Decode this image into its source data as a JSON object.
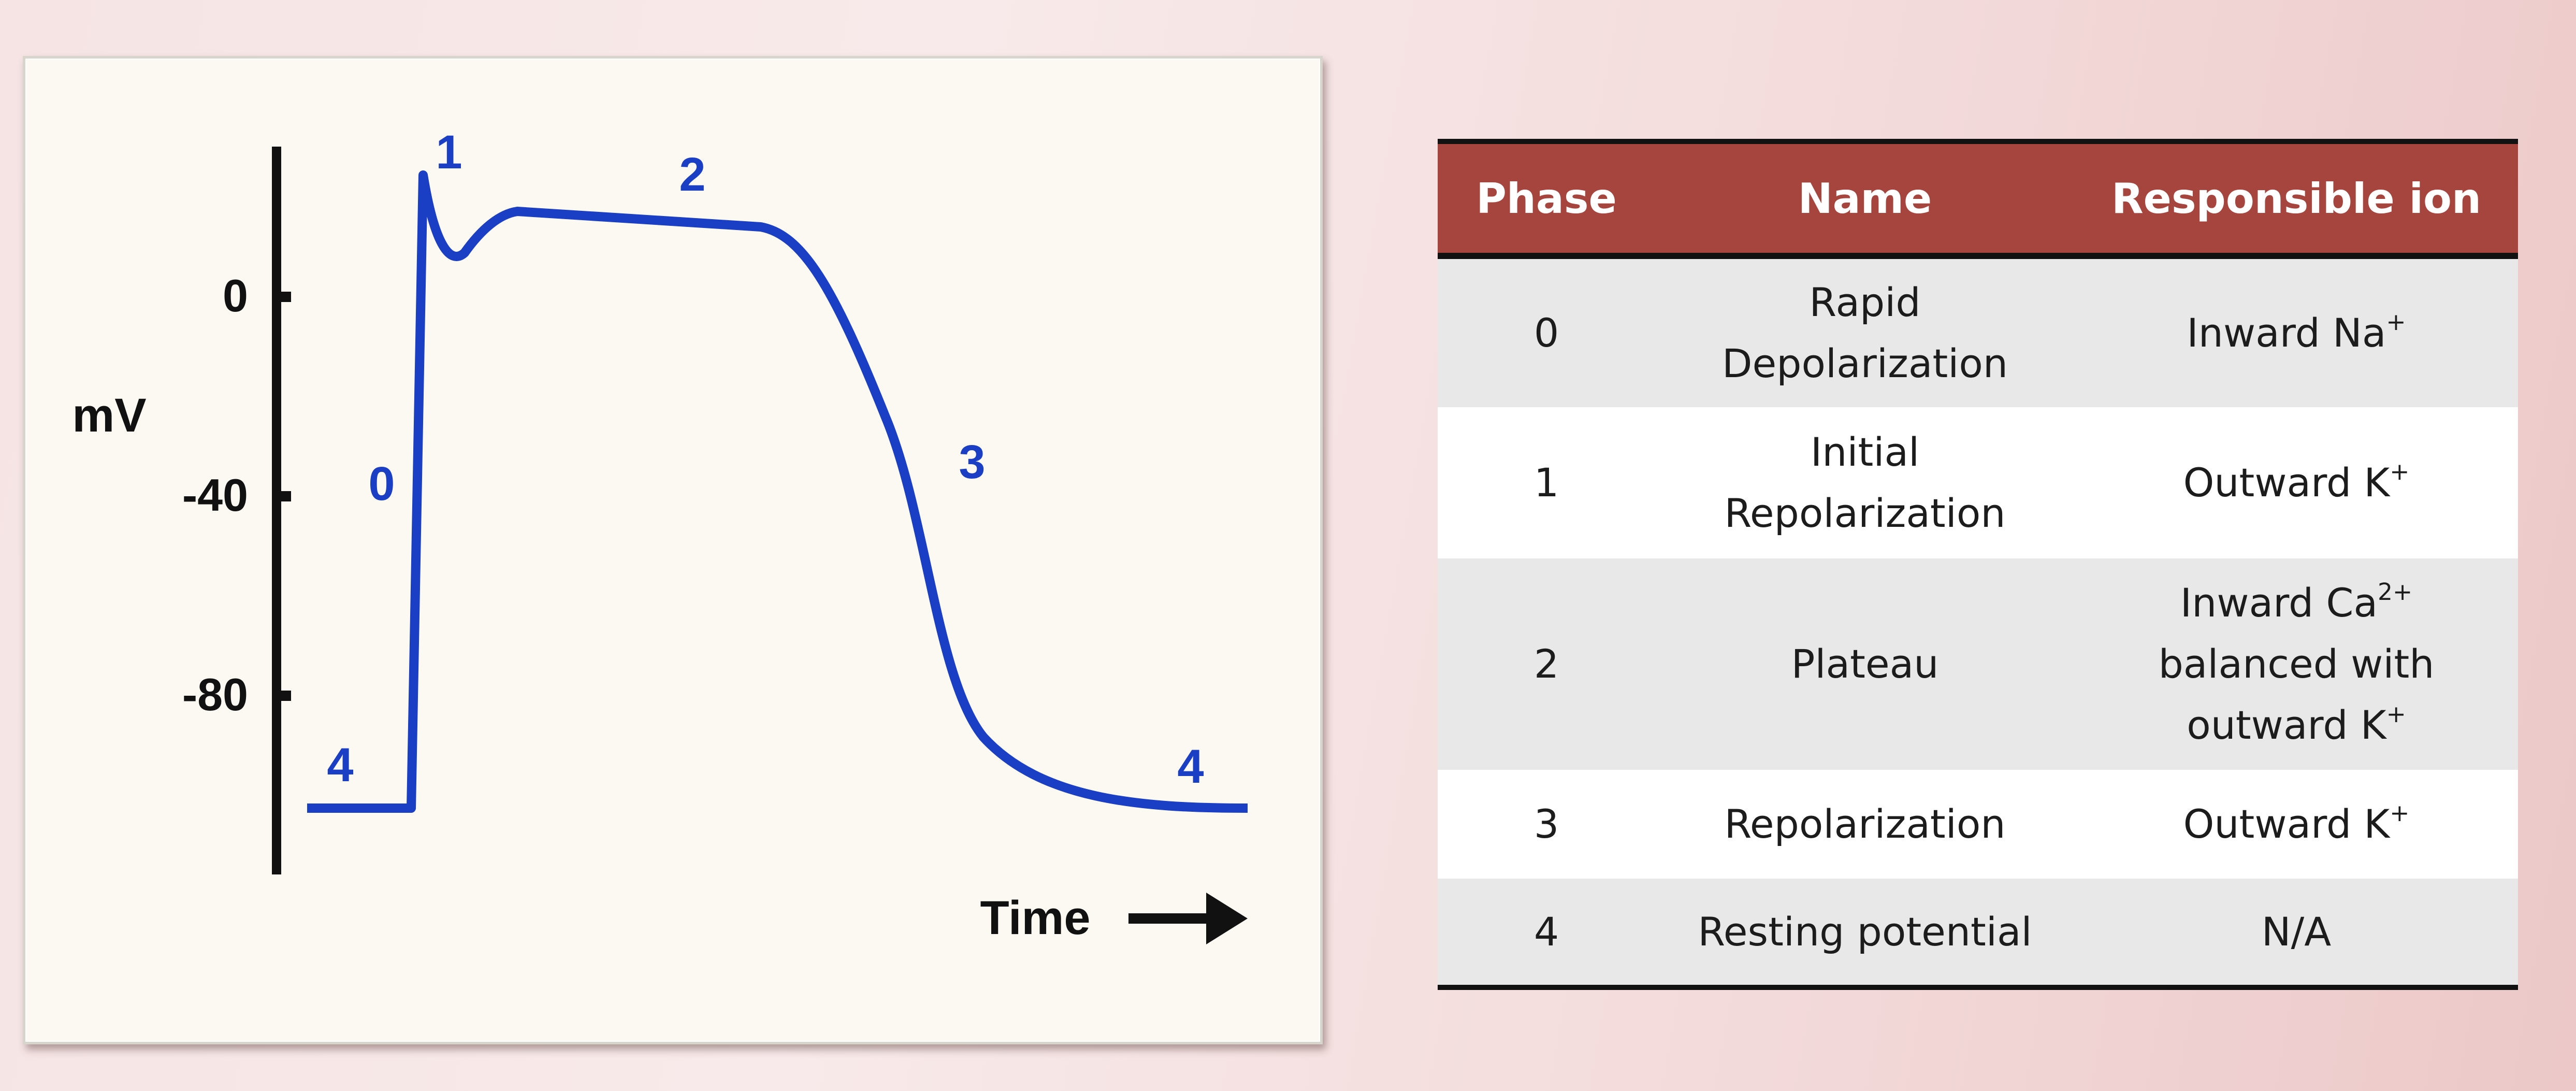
{
  "diagram": {
    "y_axis_label": "mV",
    "x_axis_label": "Time",
    "ticks": [
      "0",
      "-40",
      "-80"
    ],
    "phase_labels": [
      "4",
      "0",
      "1",
      "2",
      "3",
      "4"
    ],
    "curve_color": "#1a3fc4"
  },
  "table": {
    "headers": [
      "Phase",
      "Name",
      "Responsible ion"
    ],
    "header_color": "#a5453d",
    "rows": [
      {
        "phase": "0",
        "name_lines": [
          "Rapid",
          "Depolarization"
        ],
        "ion_lines": [
          [
            "Inward Na",
            "+"
          ]
        ]
      },
      {
        "phase": "1",
        "name_lines": [
          "Initial",
          "Repolarization"
        ],
        "ion_lines": [
          [
            "Outward K",
            "+"
          ]
        ]
      },
      {
        "phase": "2",
        "name_lines": [
          "Plateau"
        ],
        "ion_lines": [
          [
            "Inward Ca",
            "2+"
          ],
          [
            "balanced with",
            ""
          ],
          [
            "outward K",
            "+"
          ]
        ]
      },
      {
        "phase": "3",
        "name_lines": [
          "Repolarization"
        ],
        "ion_lines": [
          [
            "Outward K",
            "+"
          ]
        ]
      },
      {
        "phase": "4",
        "name_lines": [
          "Resting potential"
        ],
        "ion_lines": [
          [
            "N/A",
            ""
          ]
        ]
      }
    ]
  }
}
